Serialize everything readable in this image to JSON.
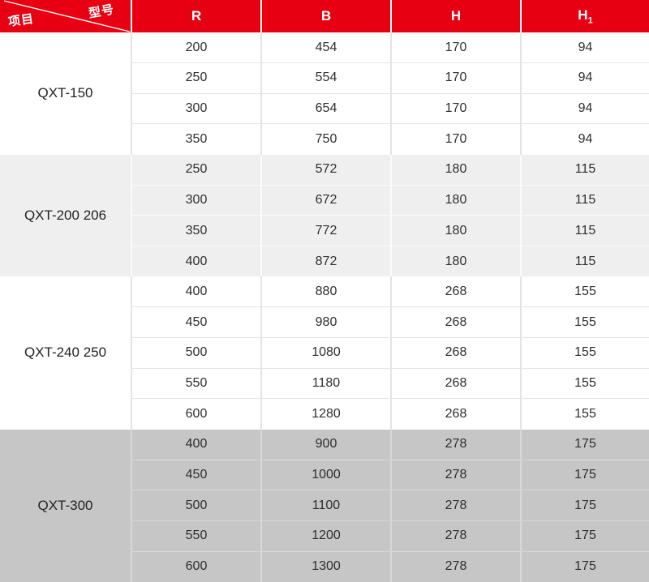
{
  "colors": {
    "header_bg": "#e60012",
    "header_text": "#ffffff",
    "body_text": "#2e2e2e",
    "group_white_bg": "#ffffff",
    "group_lightgray_bg": "#efefef",
    "group_gray_bg": "#c6c6c6"
  },
  "chart_data": {
    "type": "table",
    "corner": {
      "top_right_label": "型号",
      "bottom_left_label": "项目"
    },
    "columns": [
      {
        "label": "R",
        "sub": ""
      },
      {
        "label": "B",
        "sub": ""
      },
      {
        "label": "H",
        "sub": ""
      },
      {
        "label": "H",
        "sub": "1"
      }
    ],
    "groups": [
      {
        "model": "QXT-150",
        "bg": "#ffffff",
        "divider": "#e4e4e4",
        "rows": [
          [
            200,
            454,
            170,
            94
          ],
          [
            250,
            554,
            170,
            94
          ],
          [
            300,
            654,
            170,
            94
          ],
          [
            350,
            750,
            170,
            94
          ]
        ]
      },
      {
        "model": "QXT-200 206",
        "bg": "#efefef",
        "divider": "#fbfbfb",
        "rows": [
          [
            250,
            572,
            180,
            115
          ],
          [
            300,
            672,
            180,
            115
          ],
          [
            350,
            772,
            180,
            115
          ],
          [
            400,
            872,
            180,
            115
          ]
        ]
      },
      {
        "model": "QXT-240 250",
        "bg": "#ffffff",
        "divider": "#e4e4e4",
        "rows": [
          [
            400,
            880,
            268,
            155
          ],
          [
            450,
            980,
            268,
            155
          ],
          [
            500,
            1080,
            268,
            155
          ],
          [
            550,
            1180,
            268,
            155
          ],
          [
            600,
            1280,
            268,
            155
          ]
        ]
      },
      {
        "model": "QXT-300",
        "bg": "#c6c6c6",
        "divider": "#d8d8d8",
        "rows": [
          [
            400,
            900,
            278,
            175
          ],
          [
            450,
            1000,
            278,
            175
          ],
          [
            500,
            1100,
            278,
            175
          ],
          [
            550,
            1200,
            278,
            175
          ],
          [
            600,
            1300,
            278,
            175
          ]
        ]
      }
    ]
  }
}
